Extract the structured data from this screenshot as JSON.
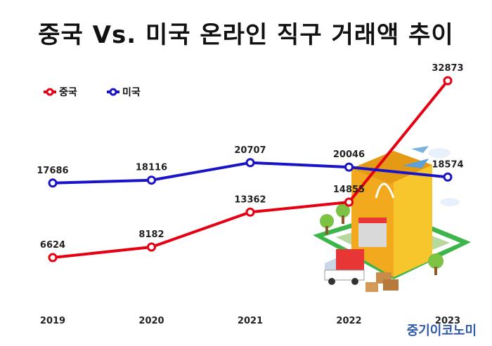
{
  "chart_data": {
    "type": "line",
    "title": "중국 Vs. 미국 온라인 직구 거래액 추이",
    "x": [
      "2019",
      "2020",
      "2021",
      "2022",
      "2023"
    ],
    "series": [
      {
        "name": "중국",
        "color": "#e60012",
        "values": [
          6624,
          8182,
          13362,
          14855,
          32873
        ]
      },
      {
        "name": "미국",
        "color": "#1a14c9",
        "values": [
          17686,
          18116,
          20707,
          20046,
          18574
        ]
      }
    ],
    "xlabel": "",
    "ylabel": "",
    "ylim": [
      0,
      35000
    ],
    "grid": false,
    "legend": "top-left"
  },
  "watermark": {
    "text": "중기이코노미",
    "color": "#2e59a8"
  }
}
